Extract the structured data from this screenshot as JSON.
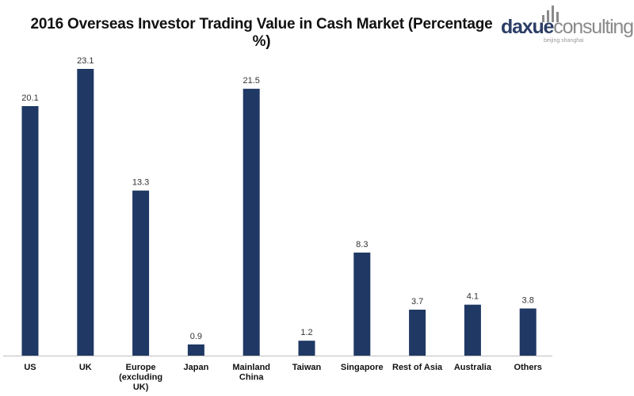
{
  "logo": {
    "brand_part1": "daxue",
    "brand_part2": "consulting",
    "tagline": "beijing shanghai"
  },
  "chart_data": {
    "type": "bar",
    "title": "2016 Overseas Investor Trading Value in Cash Market (Percentage %)",
    "xlabel": "",
    "ylabel": "",
    "categories": [
      "US",
      "UK",
      "Europe (excluding UK)",
      "Japan",
      "Mainland China",
      "Taiwan",
      "Singapore",
      "Rest of Asia",
      "Australia",
      "Others"
    ],
    "category_lines": [
      [
        "US"
      ],
      [
        "UK"
      ],
      [
        "Europe",
        "(excluding",
        "UK)"
      ],
      [
        "Japan"
      ],
      [
        "Mainland",
        "China"
      ],
      [
        "Taiwan"
      ],
      [
        "Singapore"
      ],
      [
        "Rest of Asia"
      ],
      [
        "Australia"
      ],
      [
        "Others"
      ]
    ],
    "values": [
      20.1,
      23.1,
      13.3,
      0.9,
      21.5,
      1.2,
      8.3,
      3.7,
      4.1,
      3.8
    ],
    "value_labels": [
      "20.1",
      "23.1",
      "13.3",
      "0.9",
      "21.5",
      "1.2",
      "8.3",
      "3.7",
      "4.1",
      "3.8"
    ],
    "ylim": [
      0,
      23.1
    ],
    "grid": false,
    "legend": "none",
    "bar_color": "#1f3864",
    "axis_color": "#bfbfbf"
  }
}
